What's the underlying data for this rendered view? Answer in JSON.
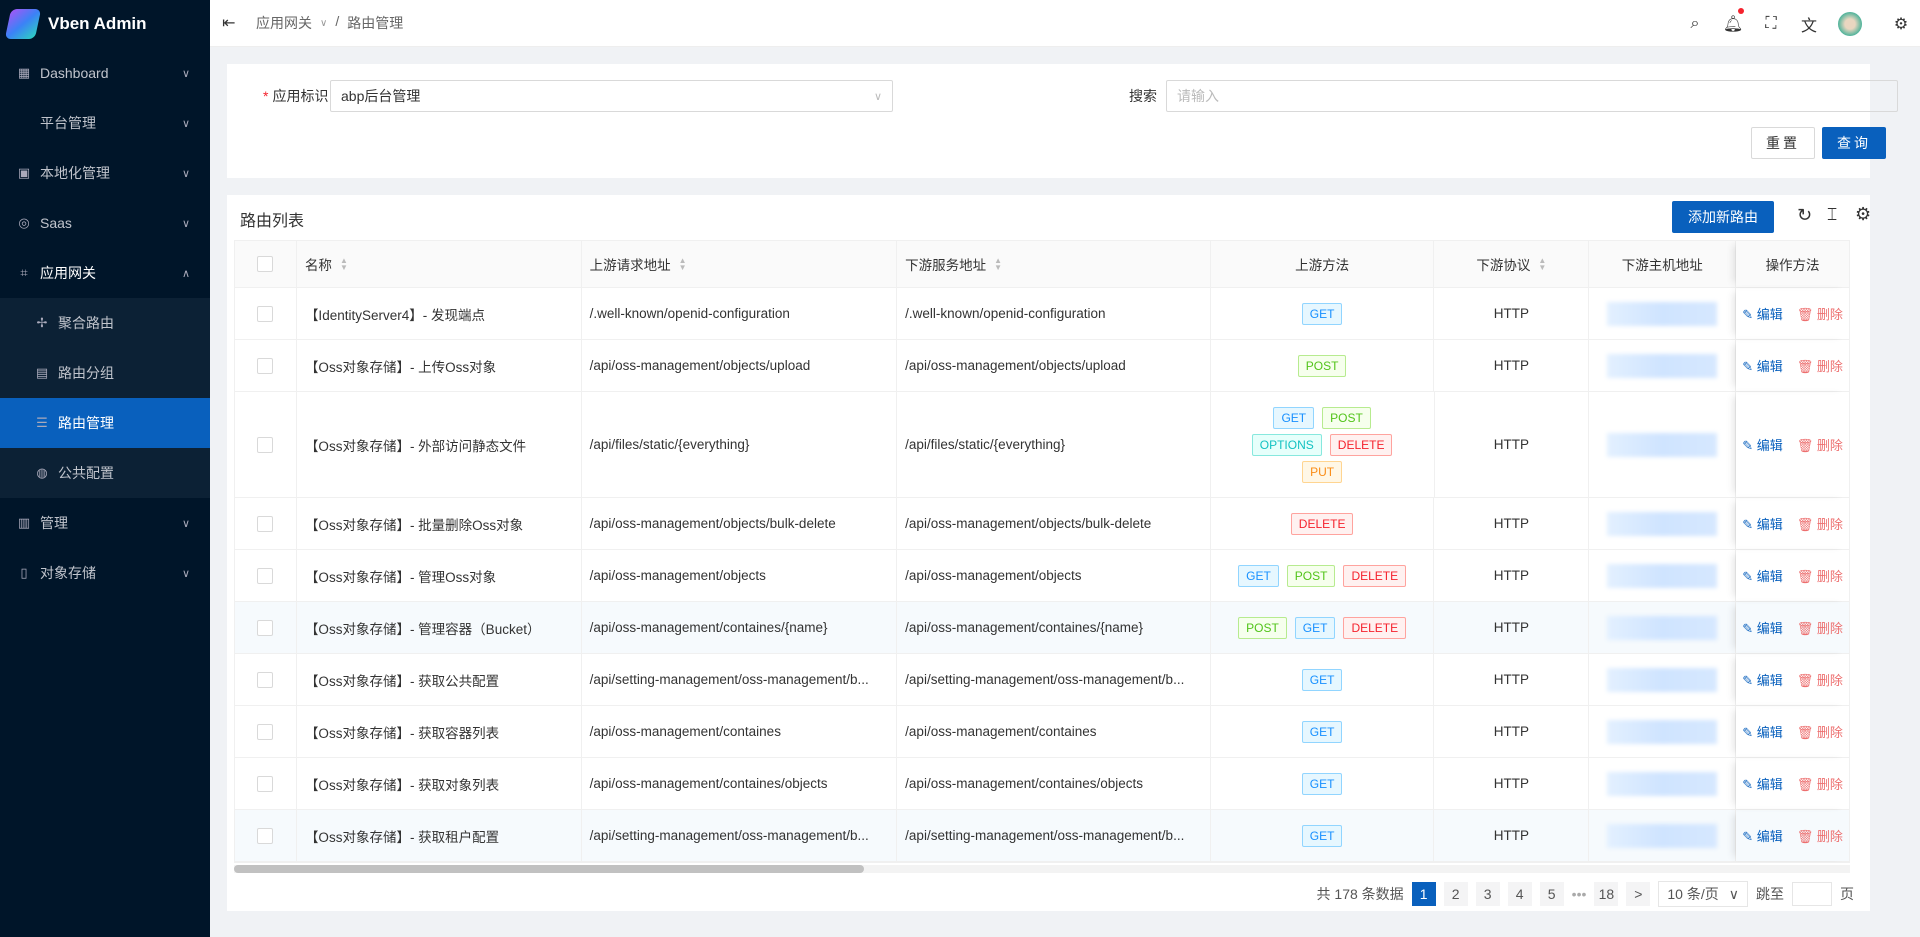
{
  "app": {
    "title": "Vben Admin"
  },
  "sidebar": {
    "items": [
      {
        "label": "Dashboard",
        "icon": "dashboard-icon"
      },
      {
        "label": "平台管理",
        "icon": ""
      },
      {
        "label": "本地化管理",
        "icon": "localization-icon"
      },
      {
        "label": "Saas",
        "icon": "saas-icon"
      },
      {
        "label": "应用网关",
        "icon": "gateway-icon",
        "open": true,
        "children": [
          {
            "label": "聚合路由",
            "icon": "move-icon"
          },
          {
            "label": "路由分组",
            "icon": "group-icon"
          },
          {
            "label": "路由管理",
            "icon": "list-icon",
            "active": true
          },
          {
            "label": "公共配置",
            "icon": "globe-icon"
          }
        ]
      },
      {
        "label": "管理",
        "icon": "settings-panel-icon"
      },
      {
        "label": "对象存储",
        "icon": "file-icon"
      }
    ]
  },
  "header": {
    "breadcrumb": [
      "应用网关",
      "路由管理"
    ],
    "separator": "/"
  },
  "search": {
    "app_label": "应用标识",
    "app_value": "abp后台管理",
    "search_label": "搜索",
    "search_placeholder": "请输入",
    "reset": "重置",
    "query": "查询"
  },
  "table": {
    "title": "路由列表",
    "add_button": "添加新路由",
    "columns": [
      "名称",
      "上游请求地址",
      "下游服务地址",
      "上游方法",
      "下游协议",
      "下游主机地址",
      "操作方法"
    ],
    "edit_label": "编辑",
    "delete_label": "删除",
    "rows": [
      {
        "name": "【IdentityServer4】- 发现端点",
        "up": "/.well-known/openid-configuration",
        "down": "/.well-known/openid-configuration",
        "methods": [
          "GET"
        ],
        "protocol": "HTTP"
      },
      {
        "name": "【Oss对象存储】- 上传Oss对象",
        "up": "/api/oss-management/objects/upload",
        "down": "/api/oss-management/objects/upload",
        "methods": [
          "POST"
        ],
        "protocol": "HTTP"
      },
      {
        "name": "【Oss对象存储】- 外部访问静态文件",
        "up": "/api/files/static/{everything}",
        "down": "/api/files/static/{everything}",
        "methods": [
          "GET",
          "POST",
          "OPTIONS",
          "DELETE",
          "PUT"
        ],
        "protocol": "HTTP"
      },
      {
        "name": "【Oss对象存储】- 批量删除Oss对象",
        "up": "/api/oss-management/objects/bulk-delete",
        "down": "/api/oss-management/objects/bulk-delete",
        "methods": [
          "DELETE"
        ],
        "protocol": "HTTP"
      },
      {
        "name": "【Oss对象存储】- 管理Oss对象",
        "up": "/api/oss-management/objects",
        "down": "/api/oss-management/objects",
        "methods": [
          "GET",
          "POST",
          "DELETE"
        ],
        "protocol": "HTTP"
      },
      {
        "name": "【Oss对象存储】- 管理容器（Bucket）",
        "up": "/api/oss-management/containes/{name}",
        "down": "/api/oss-management/containes/{name}",
        "methods": [
          "POST",
          "GET",
          "DELETE"
        ],
        "protocol": "HTTP",
        "highlight": true
      },
      {
        "name": "【Oss对象存储】- 获取公共配置",
        "up": "/api/setting-management/oss-management/b...",
        "down": "/api/setting-management/oss-management/b...",
        "methods": [
          "GET"
        ],
        "protocol": "HTTP"
      },
      {
        "name": "【Oss对象存储】- 获取容器列表",
        "up": "/api/oss-management/containes",
        "down": "/api/oss-management/containes",
        "methods": [
          "GET"
        ],
        "protocol": "HTTP"
      },
      {
        "name": "【Oss对象存储】- 获取对象列表",
        "up": "/api/oss-management/containes/objects",
        "down": "/api/oss-management/containes/objects",
        "methods": [
          "GET"
        ],
        "protocol": "HTTP"
      },
      {
        "name": "【Oss对象存储】- 获取租户配置",
        "up": "/api/setting-management/oss-management/b...",
        "down": "/api/setting-management/oss-management/b...",
        "methods": [
          "GET"
        ],
        "protocol": "HTTP",
        "highlight": true
      }
    ]
  },
  "tag_colors": {
    "GET": [
      "#e6f7ff",
      "#91d5ff",
      "#1890ff"
    ],
    "POST": [
      "#f6ffed",
      "#b7eb8f",
      "#52c41a"
    ],
    "OPTIONS": [
      "#e6fffb",
      "#87e8de",
      "#13c2c2"
    ],
    "DELETE": [
      "#fff1f0",
      "#ffa39e",
      "#f5222d"
    ],
    "PUT": [
      "#fff7e6",
      "#ffd591",
      "#fa8c16"
    ]
  },
  "pagination": {
    "total_text": "共 178 条数据",
    "pages": [
      "1",
      "2",
      "3",
      "4",
      "5",
      "•••",
      "18"
    ],
    "current": "1",
    "next": ">",
    "page_size": "10 条/页",
    "jump_label": "跳至",
    "page_suffix": "页"
  },
  "colors": {
    "primary": "#0960bd",
    "sidebar": "#001529"
  }
}
